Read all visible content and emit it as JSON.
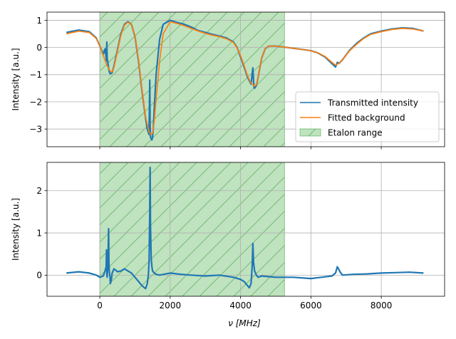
{
  "chart_data": [
    {
      "type": "line",
      "ylabel": "Intensity [a.u.]",
      "xlabel": "",
      "xlim": [
        -1500,
        9800
      ],
      "ylim": [
        -3.65,
        1.3
      ],
      "xticks": [
        0,
        2000,
        4000,
        6000,
        8000
      ],
      "xtick_labels_visible": false,
      "yticks": [
        -3,
        -2,
        -1,
        0,
        1
      ],
      "ytick_labels": [
        "−3",
        "−2",
        "−1",
        "0",
        "1"
      ],
      "grid": true,
      "legend_position": "lower-right",
      "span": {
        "name": "Etalon range",
        "x0": 0,
        "x1": 5250,
        "color": "#2ca02c",
        "hatch": "/"
      },
      "series": [
        {
          "name": "Transmitted intensity",
          "color": "#1f77b4",
          "x": [
            -950,
            -600,
            -300,
            -100,
            0,
            100,
            150,
            190,
            200,
            210,
            230,
            250,
            270,
            300,
            350,
            400,
            500,
            600,
            700,
            800,
            900,
            1000,
            1100,
            1200,
            1300,
            1350,
            1400,
            1420,
            1430,
            1440,
            1460,
            1480,
            1500,
            1520,
            1550,
            1600,
            1700,
            1800,
            2000,
            2200,
            2400,
            2600,
            2800,
            3000,
            3200,
            3400,
            3600,
            3800,
            3900,
            4000,
            4100,
            4200,
            4300,
            4350,
            4380,
            4400,
            4450,
            4500,
            4600,
            4700,
            4800,
            5000,
            5200,
            5500,
            5800,
            6000,
            6200,
            6400,
            6600,
            6700,
            6720,
            6750,
            6800,
            6900,
            7100,
            7300,
            7500,
            7700,
            8000,
            8300,
            8600,
            8900,
            9200
          ],
          "y": [
            0.55,
            0.64,
            0.58,
            0.35,
            0.05,
            -0.25,
            -0.05,
            -0.5,
            0.2,
            -0.4,
            -0.55,
            -0.75,
            -0.9,
            -0.97,
            -0.93,
            -0.7,
            -0.1,
            0.5,
            0.85,
            0.95,
            0.85,
            0.4,
            -0.5,
            -1.6,
            -2.6,
            -3.0,
            -3.2,
            -1.2,
            -2.9,
            -3.3,
            -3.35,
            -3.4,
            -3.3,
            -3.0,
            -2.2,
            -1.0,
            0.3,
            0.85,
            1.0,
            0.92,
            0.85,
            0.75,
            0.62,
            0.55,
            0.48,
            0.42,
            0.35,
            0.2,
            0.0,
            -0.35,
            -0.7,
            -1.1,
            -1.35,
            -0.75,
            -1.45,
            -1.5,
            -1.4,
            -1.1,
            -0.4,
            -0.05,
            0.05,
            0.05,
            0.02,
            -0.03,
            -0.08,
            -0.12,
            -0.2,
            -0.35,
            -0.6,
            -0.72,
            -0.65,
            -0.55,
            -0.58,
            -0.45,
            -0.1,
            0.15,
            0.35,
            0.5,
            0.6,
            0.68,
            0.72,
            0.7,
            0.6
          ]
        },
        {
          "name": "Fitted background",
          "color": "#ff7f0e",
          "x": [
            -950,
            -600,
            -300,
            -100,
            0,
            100,
            200,
            300,
            350,
            400,
            500,
            600,
            700,
            800,
            900,
            1000,
            1100,
            1200,
            1300,
            1400,
            1450,
            1500,
            1550,
            1600,
            1700,
            1800,
            2000,
            2200,
            2400,
            2600,
            2800,
            3000,
            3200,
            3400,
            3600,
            3800,
            3900,
            4000,
            4100,
            4200,
            4300,
            4400,
            4450,
            4500,
            4600,
            4700,
            4800,
            5000,
            5200,
            5500,
            5800,
            6000,
            6200,
            6400,
            6600,
            6700,
            6800,
            6900,
            7100,
            7300,
            7500,
            7700,
            8000,
            8300,
            8600,
            8900,
            9200
          ],
          "y": [
            0.5,
            0.6,
            0.55,
            0.33,
            0.05,
            -0.3,
            -0.65,
            -0.88,
            -0.9,
            -0.75,
            -0.15,
            0.45,
            0.82,
            0.93,
            0.85,
            0.42,
            -0.45,
            -1.55,
            -2.55,
            -3.1,
            -3.2,
            -3.15,
            -2.7,
            -1.9,
            -0.5,
            0.5,
            0.95,
            0.88,
            0.8,
            0.7,
            0.6,
            0.52,
            0.45,
            0.4,
            0.32,
            0.18,
            -0.02,
            -0.3,
            -0.65,
            -1.05,
            -1.32,
            -1.42,
            -1.38,
            -1.1,
            -0.4,
            -0.05,
            0.05,
            0.05,
            0.02,
            -0.03,
            -0.08,
            -0.12,
            -0.2,
            -0.33,
            -0.55,
            -0.65,
            -0.58,
            -0.45,
            -0.12,
            0.12,
            0.33,
            0.48,
            0.58,
            0.66,
            0.7,
            0.68,
            0.6
          ]
        }
      ]
    },
    {
      "type": "line",
      "ylabel": "Intensity [a.u.]",
      "xlabel": "ν [MHz]",
      "xlim": [
        -1500,
        9800
      ],
      "ylim": [
        -0.5,
        2.67
      ],
      "xticks": [
        0,
        2000,
        4000,
        6000,
        8000
      ],
      "xtick_labels": [
        "0",
        "2000",
        "4000",
        "6000",
        "8000"
      ],
      "yticks": [
        0,
        1,
        2
      ],
      "ytick_labels": [
        "0",
        "1",
        "2"
      ],
      "grid": true,
      "span": {
        "name": "Etalon range",
        "x0": 0,
        "x1": 5250,
        "color": "#2ca02c",
        "hatch": "/"
      },
      "series": [
        {
          "name": "Transmitted intensity",
          "color": "#1f77b4",
          "x": [
            -950,
            -600,
            -300,
            -100,
            0,
            100,
            150,
            180,
            190,
            200,
            210,
            230,
            250,
            260,
            270,
            290,
            300,
            330,
            350,
            380,
            400,
            450,
            500,
            600,
            700,
            800,
            900,
            1000,
            1100,
            1200,
            1300,
            1350,
            1380,
            1400,
            1420,
            1430,
            1440,
            1450,
            1460,
            1480,
            1500,
            1550,
            1600,
            1700,
            2000,
            2300,
            2600,
            3000,
            3400,
            3800,
            4000,
            4100,
            4200,
            4250,
            4300,
            4330,
            4350,
            4370,
            4400,
            4450,
            4500,
            4600,
            5000,
            5500,
            6000,
            6300,
            6600,
            6700,
            6750,
            6800,
            6850,
            6900,
            7200,
            7600,
            8000,
            8400,
            8800,
            9200
          ],
          "y": [
            0.05,
            0.08,
            0.05,
            0.0,
            -0.05,
            -0.02,
            0.1,
            0.2,
            0.6,
            0.05,
            -0.05,
            0.2,
            1.1,
            0.3,
            0.1,
            -0.05,
            -0.2,
            -0.1,
            0.05,
            0.1,
            0.15,
            0.12,
            0.08,
            0.1,
            0.15,
            0.1,
            0.05,
            -0.05,
            -0.15,
            -0.25,
            -0.32,
            -0.2,
            0.0,
            0.3,
            1.5,
            2.55,
            1.2,
            0.8,
            0.4,
            0.2,
            0.1,
            0.05,
            0.02,
            0.0,
            0.05,
            0.02,
            0.0,
            -0.02,
            0.0,
            -0.05,
            -0.1,
            -0.15,
            -0.25,
            -0.3,
            -0.2,
            0.2,
            0.75,
            0.3,
            0.1,
            0.0,
            -0.05,
            -0.02,
            -0.05,
            -0.05,
            -0.08,
            -0.05,
            -0.02,
            0.05,
            0.2,
            0.12,
            0.05,
            0.0,
            0.02,
            0.03,
            0.05,
            0.06,
            0.07,
            0.05
          ]
        }
      ]
    }
  ],
  "legend": {
    "entries": [
      {
        "label": "Transmitted intensity",
        "kind": "line",
        "color": "#1f77b4"
      },
      {
        "label": "Fitted background",
        "kind": "line",
        "color": "#ff7f0e"
      },
      {
        "label": "Etalon range",
        "kind": "patch",
        "color": "#2ca02c"
      }
    ]
  }
}
